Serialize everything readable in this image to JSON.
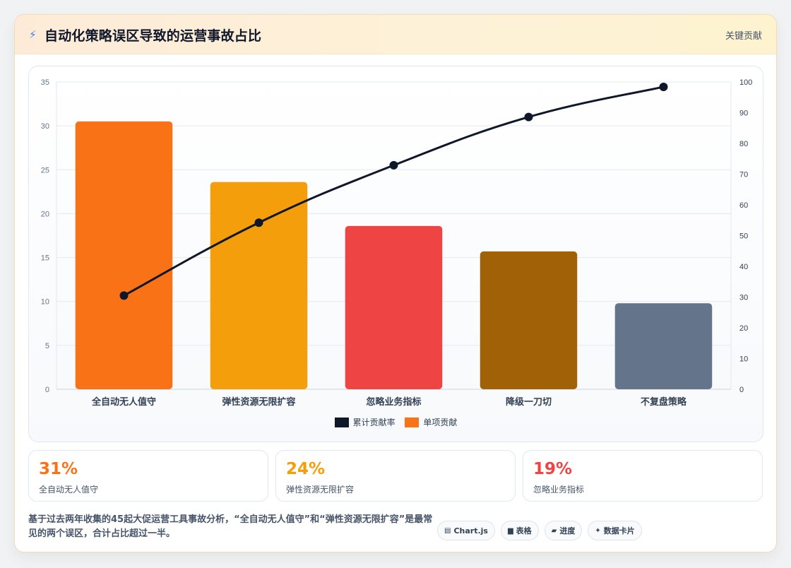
{
  "header": {
    "icon": "lightning-icon",
    "title": "自动化策略误区导致的运营事故占比",
    "tag": "关键贡献"
  },
  "chart_data": {
    "type": "bar",
    "categories": [
      "全自动无人值守",
      "弹性资源无限扩容",
      "忽略业务指标",
      "降级一刀切",
      "不复盘策略"
    ],
    "series": [
      {
        "name": "单项贡献",
        "type": "bar",
        "axis": "left",
        "values": [
          30.5,
          23.6,
          18.6,
          15.7,
          9.8
        ],
        "colors": [
          "#f97316",
          "#f59e0b",
          "#ef4444",
          "#a16207",
          "#64748b"
        ]
      },
      {
        "name": "累计贡献率",
        "type": "line",
        "axis": "right",
        "values": [
          30.5,
          54.2,
          72.9,
          88.6,
          98.4
        ],
        "color": "#0f172a"
      }
    ],
    "y_left": {
      "min": 0,
      "max": 35,
      "ticks": [
        0,
        5,
        10,
        15,
        20,
        25,
        30,
        35
      ]
    },
    "y_right": {
      "min": 0,
      "max": 100,
      "ticks": [
        0,
        10,
        20,
        30,
        40,
        50,
        60,
        70,
        80,
        90,
        100
      ]
    },
    "legend": [
      {
        "label": "累计贡献率",
        "color": "#0f172a"
      },
      {
        "label": "单项贡献",
        "color": "#f97316"
      }
    ],
    "legend_position": "bottom",
    "grid": true
  },
  "stats": [
    {
      "value": "31%",
      "label": "全自动无人值守",
      "color": "#f97316"
    },
    {
      "value": "24%",
      "label": "弹性资源无限扩容",
      "color": "#f59e0b"
    },
    {
      "value": "19%",
      "label": "忽略业务指标",
      "color": "#ef4444"
    }
  ],
  "footnote": "基于过去两年收集的45起大促运营工具事故分析，“全自动无人值守”和“弹性资源无限扩容”是最常见的两个误区，合计占比超过一半。",
  "badges": [
    {
      "icon": "chart-icon",
      "glyph": "▤",
      "label": "Chart.js"
    },
    {
      "icon": "table-icon",
      "glyph": "▆",
      "label": "表格"
    },
    {
      "icon": "progress-icon",
      "glyph": "▰",
      "label": "进度"
    },
    {
      "icon": "sparkle-icon",
      "glyph": "✦",
      "label": "数据卡片"
    }
  ]
}
